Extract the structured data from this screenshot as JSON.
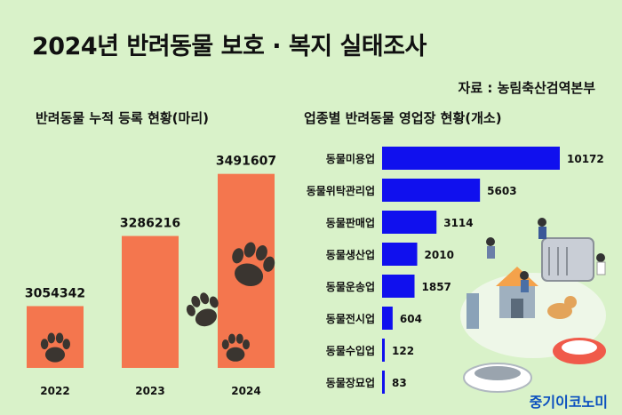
{
  "title": "2024년 반려동물 보호 · 복지 실태조사",
  "source": "자료 : 농림축산검역본부",
  "brand": "중기이코노미",
  "colors": {
    "bar_left": "#f4764e",
    "bar_right": "#1010ee",
    "paw": "#3a3530",
    "background": "#d9f2c9"
  },
  "chart_data": [
    {
      "type": "bar",
      "title": "반려동물 누적 등록 현황(마리)",
      "categories": [
        "2022",
        "2023",
        "2024"
      ],
      "values": [
        3054342,
        3286216,
        3491607
      ],
      "ylim": [
        2850000,
        3520000
      ],
      "grid": false,
      "legend": "none"
    },
    {
      "type": "bar",
      "orientation": "horizontal",
      "title": "업종별 반려동물 영업장 현황(개소)",
      "categories": [
        "동물미용업",
        "동물위탁관리업",
        "동물판매업",
        "동물생산업",
        "동물운송업",
        "동물전시업",
        "동물수입업",
        "동물장묘업"
      ],
      "values": [
        10172,
        5603,
        3114,
        2010,
        1857,
        604,
        122,
        83
      ],
      "xlim": [
        0,
        10172
      ],
      "grid": false,
      "legend": "none"
    }
  ]
}
